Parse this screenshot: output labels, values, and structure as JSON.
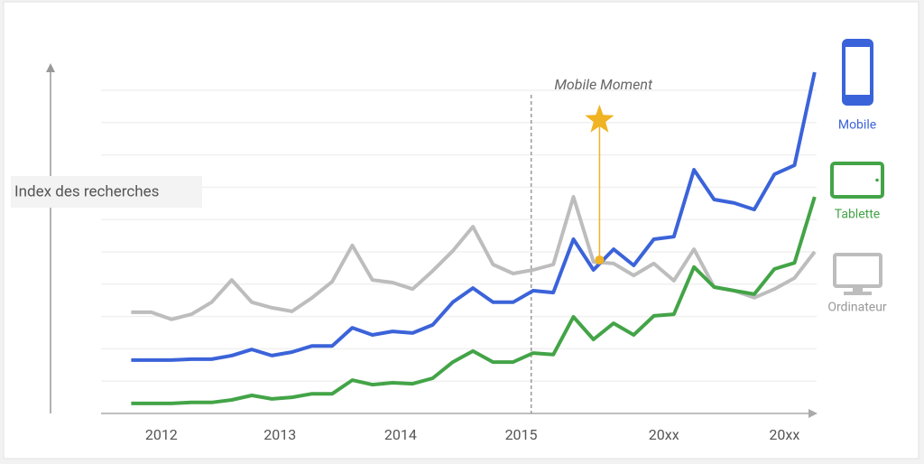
{
  "chart_data": {
    "type": "line",
    "ylabel": "Index des recherches",
    "x": [
      0,
      1,
      2,
      3,
      4,
      5,
      6,
      7,
      8,
      9,
      10,
      11,
      12,
      13,
      14,
      15,
      16,
      17,
      18,
      19,
      20,
      21,
      22,
      23,
      24,
      25,
      26,
      27,
      28,
      29,
      30,
      31,
      32,
      33,
      34
    ],
    "xlim": [
      -1.5,
      34.1
    ],
    "xticks": [
      {
        "value": 1.5,
        "label": "2012"
      },
      {
        "value": 7.4,
        "label": "2013"
      },
      {
        "value": 13.4,
        "label": "2014"
      },
      {
        "value": 19.4,
        "label": "2015"
      },
      {
        "value": 26.5,
        "label": "20xx"
      },
      {
        "value": 32.5,
        "label": "20xx"
      }
    ],
    "ylim": [
      0,
      108
    ],
    "yticks": [
      10,
      20,
      30,
      40,
      50,
      60,
      70,
      80,
      90,
      100
    ],
    "grid": true,
    "legend": "right",
    "series": [
      {
        "name": "Mobile",
        "color": "#3b63d9",
        "values": [
          16.5,
          16.5,
          16.5,
          16.8,
          16.8,
          17.9,
          19.8,
          17.9,
          19.0,
          20.9,
          20.9,
          26.5,
          24.3,
          25.4,
          24.9,
          27.4,
          34.4,
          38.8,
          34.4,
          34.4,
          38.0,
          37.4,
          53.9,
          44.4,
          50.8,
          45.8,
          53.9,
          54.7,
          75.4,
          66.2,
          65.1,
          63.1,
          74.0,
          76.8,
          105.6
        ]
      },
      {
        "name": "Tablette",
        "color": "#43a447",
        "values": [
          3.1,
          3.1,
          3.1,
          3.4,
          3.4,
          4.2,
          5.6,
          4.5,
          5.0,
          6.1,
          6.1,
          10.3,
          8.9,
          9.5,
          9.2,
          10.9,
          15.9,
          19.3,
          15.9,
          15.9,
          18.7,
          18.2,
          29.9,
          22.9,
          27.9,
          24.3,
          30.2,
          30.7,
          45.3,
          39.1,
          38.0,
          36.9,
          44.7,
          46.6,
          67.0
        ]
      },
      {
        "name": "Ordinateur",
        "color": "#bdbdbd",
        "values": [
          31.3,
          31.3,
          29.1,
          30.7,
          34.4,
          41.3,
          34.4,
          32.7,
          31.6,
          35.8,
          40.8,
          52.0,
          41.3,
          40.5,
          38.5,
          44.1,
          50.3,
          57.8,
          46.1,
          43.3,
          44.4,
          46.1,
          67.0,
          46.9,
          46.4,
          42.7,
          46.4,
          41.1,
          50.8,
          39.1,
          38.0,
          35.8,
          38.5,
          41.9,
          50.0
        ]
      }
    ],
    "annotation": {
      "text": "Mobile Moment",
      "x": 19.9,
      "marker": {
        "x": 23.3,
        "y": 47.5,
        "star_y": 90.8,
        "color": "#f0b323"
      }
    }
  }
}
